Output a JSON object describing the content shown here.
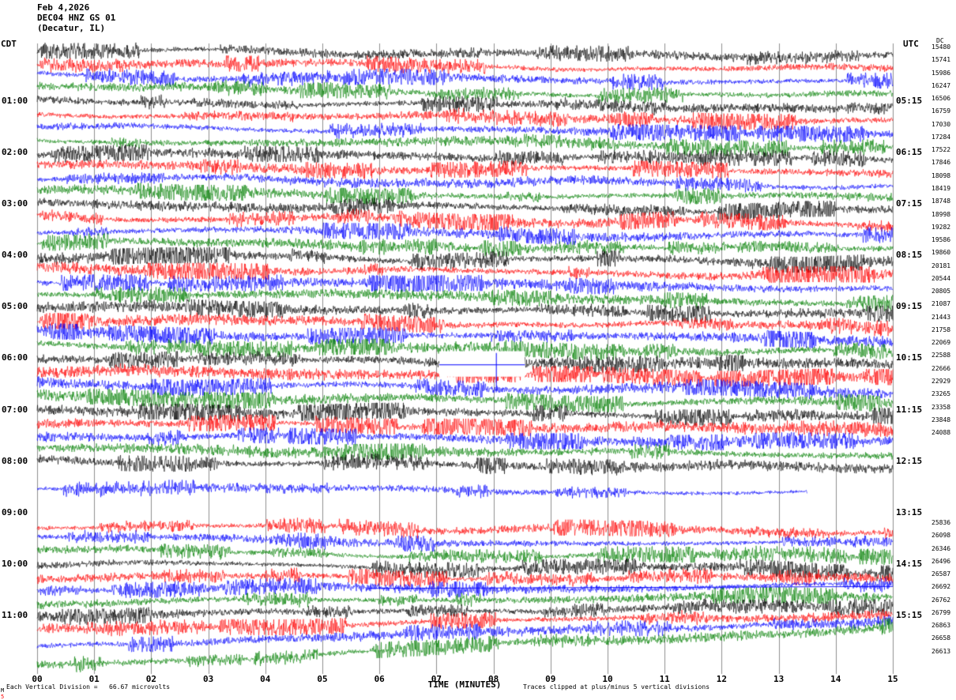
{
  "header": {
    "date": "Feb 4,2026",
    "station": "DEC04 HNZ GS 01",
    "location": "(Decatur, IL)"
  },
  "axes": {
    "left_tz": "CDT",
    "right_tz": "UTC",
    "dc_header": "DC",
    "x_title": "TIME (MINUTES)",
    "x_ticks": [
      "00",
      "01",
      "02",
      "03",
      "04",
      "05",
      "06",
      "07",
      "08",
      "09",
      "10",
      "11",
      "12",
      "13",
      "14",
      "15"
    ]
  },
  "footer": {
    "left": "Each Vertical Division =   66.67 microvolts",
    "right": "Traces clipped at plus/minus 5 vertical divisions",
    "corner_top": "M",
    "corner_bottom": "5"
  },
  "colors": {
    "black": "#000000",
    "red": "#ff0000",
    "blue": "#0000ff",
    "green": "#007f00"
  },
  "left_labels": [
    {
      "text": "01:00",
      "row": 4
    },
    {
      "text": "02:00",
      "row": 8
    },
    {
      "text": "03:00",
      "row": 12
    },
    {
      "text": "04:00",
      "row": 16
    },
    {
      "text": "05:00",
      "row": 20
    },
    {
      "text": "06:00",
      "row": 24
    },
    {
      "text": "07:00",
      "row": 28
    },
    {
      "text": "08:00",
      "row": 32
    },
    {
      "text": "09:00",
      "row": 36
    },
    {
      "text": "10:00",
      "row": 40
    },
    {
      "text": "11:00",
      "row": 44
    }
  ],
  "right_labels": [
    {
      "text": "05:15",
      "row": 4
    },
    {
      "text": "06:15",
      "row": 8
    },
    {
      "text": "07:15",
      "row": 12
    },
    {
      "text": "08:15",
      "row": 16
    },
    {
      "text": "09:15",
      "row": 20
    },
    {
      "text": "10:15",
      "row": 24
    },
    {
      "text": "11:15",
      "row": 28
    },
    {
      "text": "12:15",
      "row": 32
    },
    {
      "text": "13:15",
      "row": 36
    },
    {
      "text": "14:15",
      "row": 40
    },
    {
      "text": "15:15",
      "row": 44
    }
  ],
  "chart_data": {
    "type": "line",
    "subtype": "helicorder-seismogram",
    "x_range_minutes": [
      0,
      15
    ],
    "minutes_per_row": 15,
    "row_start_cdt": "00:00",
    "y_units": "microvolts",
    "vertical_division_microvolts": 66.67,
    "clip_divisions": 5,
    "dropout": {
      "from_min": 7.05,
      "to_min": 8.55,
      "spike_min": 8.05,
      "cover_row_top": 24,
      "line_row": 25
    },
    "flatline": {
      "row": 42,
      "from_min": 5.8,
      "to_min": 15
    },
    "rows": [
      {
        "cdt": "00:00",
        "color": "black",
        "present": true,
        "amp": 3.0,
        "sdy": 0,
        "edy": 9,
        "dc": 15480
      },
      {
        "cdt": "00:15",
        "color": "red",
        "present": true,
        "amp": 3.0,
        "sdy": 0,
        "edy": 9,
        "dc": 15741
      },
      {
        "cdt": "00:30",
        "color": "blue",
        "present": true,
        "amp": 3.0,
        "sdy": 0,
        "edy": 9,
        "dc": 15986
      },
      {
        "cdt": "00:45",
        "color": "green",
        "present": true,
        "amp": 3.0,
        "sdy": 0,
        "edy": 9,
        "dc": 16247
      },
      {
        "cdt": "01:00",
        "color": "black",
        "present": true,
        "amp": 3.2,
        "sdy": 0,
        "edy": 9,
        "dc": 16506
      },
      {
        "cdt": "01:15",
        "color": "red",
        "present": true,
        "amp": 3.2,
        "sdy": 0,
        "edy": 9,
        "dc": 16759
      },
      {
        "cdt": "01:30",
        "color": "blue",
        "present": true,
        "amp": 3.2,
        "sdy": 0,
        "edy": 9,
        "dc": 17030
      },
      {
        "cdt": "01:45",
        "color": "green",
        "present": true,
        "amp": 3.2,
        "sdy": 0,
        "edy": 9,
        "dc": 17284
      },
      {
        "cdt": "02:00",
        "color": "black",
        "present": true,
        "amp": 3.4,
        "sdy": 0,
        "edy": 9,
        "dc": 17522
      },
      {
        "cdt": "02:15",
        "color": "red",
        "present": true,
        "amp": 3.4,
        "sdy": 0,
        "edy": 9,
        "dc": 17846
      },
      {
        "cdt": "02:30",
        "color": "blue",
        "present": true,
        "amp": 3.4,
        "sdy": 0,
        "edy": 9,
        "dc": 18098
      },
      {
        "cdt": "02:45",
        "color": "green",
        "present": true,
        "amp": 3.4,
        "sdy": 0,
        "edy": 9,
        "dc": 18419
      },
      {
        "cdt": "03:00",
        "color": "black",
        "present": true,
        "amp": 3.4,
        "sdy": 0,
        "edy": 9,
        "dc": 18748
      },
      {
        "cdt": "03:15",
        "color": "red",
        "present": true,
        "amp": 3.4,
        "sdy": 0,
        "edy": 9,
        "dc": 18998
      },
      {
        "cdt": "03:30",
        "color": "blue",
        "present": true,
        "amp": 3.4,
        "sdy": 0,
        "edy": 9,
        "dc": 19282
      },
      {
        "cdt": "03:45",
        "color": "green",
        "present": true,
        "amp": 3.4,
        "sdy": 0,
        "edy": 9,
        "dc": 19586
      },
      {
        "cdt": "04:00",
        "color": "black",
        "present": true,
        "amp": 3.8,
        "sdy": 0,
        "edy": 9,
        "dc": 19860
      },
      {
        "cdt": "04:15",
        "color": "red",
        "present": true,
        "amp": 3.8,
        "sdy": 0,
        "edy": 9,
        "dc": 20181
      },
      {
        "cdt": "04:30",
        "color": "blue",
        "present": true,
        "amp": 3.8,
        "sdy": 0,
        "edy": 9,
        "dc": 20544
      },
      {
        "cdt": "04:45",
        "color": "green",
        "present": true,
        "amp": 3.8,
        "sdy": 0,
        "edy": 9,
        "dc": 20805
      },
      {
        "cdt": "05:00",
        "color": "black",
        "present": true,
        "amp": 4.0,
        "sdy": 0,
        "edy": 9,
        "dc": 21087
      },
      {
        "cdt": "05:15",
        "color": "red",
        "present": true,
        "amp": 4.0,
        "sdy": 0,
        "edy": 9,
        "dc": 21443
      },
      {
        "cdt": "05:30",
        "color": "blue",
        "present": true,
        "amp": 4.0,
        "sdy": 0,
        "edy": 9,
        "dc": 21758
      },
      {
        "cdt": "05:45",
        "color": "green",
        "present": true,
        "amp": 4.0,
        "sdy": 0,
        "edy": 9,
        "dc": 22069
      },
      {
        "cdt": "06:00",
        "color": "black",
        "present": true,
        "amp": 4.2,
        "sdy": 0,
        "edy": 9,
        "dc": 22588
      },
      {
        "cdt": "06:15",
        "color": "red",
        "present": true,
        "amp": 4.2,
        "sdy": 0,
        "edy": 9,
        "dc": 22666
      },
      {
        "cdt": "06:30",
        "color": "blue",
        "present": true,
        "amp": 4.2,
        "sdy": 0,
        "edy": 9,
        "dc": 22929
      },
      {
        "cdt": "06:45",
        "color": "green",
        "present": true,
        "amp": 4.2,
        "sdy": 0,
        "edy": 9,
        "dc": 23265
      },
      {
        "cdt": "07:00",
        "color": "black",
        "present": true,
        "amp": 4.0,
        "sdy": 0,
        "edy": 9,
        "dc": 23358
      },
      {
        "cdt": "07:15",
        "color": "red",
        "present": true,
        "amp": 4.0,
        "sdy": 0,
        "edy": 9,
        "dc": 23848
      },
      {
        "cdt": "07:30",
        "color": "blue",
        "present": true,
        "amp": 4.0,
        "sdy": 0,
        "edy": 9,
        "dc": 24088
      },
      {
        "cdt": "07:45",
        "color": "green",
        "present": true,
        "amp": 4.0,
        "sdy": 0,
        "edy": 9,
        "dc": null
      },
      {
        "cdt": "08:00",
        "color": "black",
        "present": true,
        "amp": 3.6,
        "sdy": 0,
        "edy": 9,
        "dc": null
      },
      {
        "cdt": "08:15",
        "color": "red",
        "present": false,
        "amp": 0,
        "sdy": 0,
        "edy": 0,
        "dc": null
      },
      {
        "cdt": "08:30",
        "color": "blue",
        "present": true,
        "amp": 2.4,
        "sdy": 0,
        "edy": 9,
        "dc": null,
        "end_min": 13.5
      },
      {
        "cdt": "08:45",
        "color": "green",
        "present": false,
        "amp": 0,
        "sdy": 0,
        "edy": 0,
        "dc": null
      },
      {
        "cdt": "09:00",
        "color": "black",
        "present": false,
        "amp": 0,
        "sdy": 0,
        "edy": 0,
        "dc": null
      },
      {
        "cdt": "09:15",
        "color": "red",
        "present": true,
        "amp": 2.8,
        "sdy": 0,
        "edy": 8,
        "dc": 25836
      },
      {
        "cdt": "09:30",
        "color": "blue",
        "present": true,
        "amp": 2.8,
        "sdy": 0,
        "edy": 8,
        "dc": 26098
      },
      {
        "cdt": "09:45",
        "color": "green",
        "present": true,
        "amp": 2.8,
        "sdy": 0,
        "edy": 8,
        "dc": 26346
      },
      {
        "cdt": "10:00",
        "color": "black",
        "present": true,
        "amp": 3.0,
        "sdy": 0,
        "edy": 8,
        "dc": 26496
      },
      {
        "cdt": "10:15",
        "color": "red",
        "present": true,
        "amp": 3.2,
        "sdy": 0,
        "edy": 2,
        "dc": 26587
      },
      {
        "cdt": "10:30",
        "color": "blue",
        "present": true,
        "amp": 3.2,
        "sdy": 0,
        "edy": -4,
        "dc": 26692
      },
      {
        "cdt": "10:45",
        "color": "green",
        "present": true,
        "amp": 3.2,
        "sdy": 0,
        "edy": -8,
        "dc": 26762
      },
      {
        "cdt": "11:00",
        "color": "black",
        "present": true,
        "amp": 3.4,
        "sdy": 0,
        "edy": -12,
        "dc": 26799
      },
      {
        "cdt": "11:15",
        "color": "red",
        "present": true,
        "amp": 3.4,
        "sdy": 2,
        "edy": -18,
        "dc": 26863
      },
      {
        "cdt": "11:30",
        "color": "blue",
        "present": true,
        "amp": 3.4,
        "sdy": 6,
        "edy": -26,
        "dc": 26658
      },
      {
        "cdt": "11:45",
        "color": "green",
        "present": true,
        "amp": 3.4,
        "sdy": 16,
        "edy": -34,
        "dc": 26613
      }
    ]
  }
}
